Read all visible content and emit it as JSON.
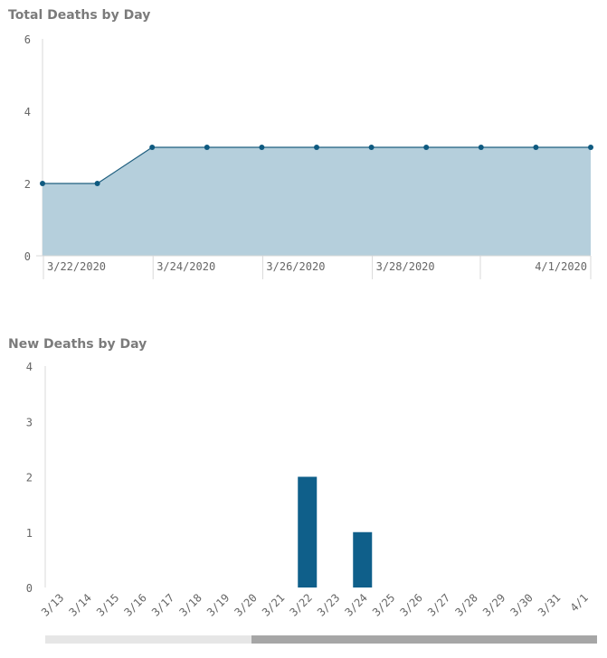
{
  "chart_data": [
    {
      "type": "area",
      "title": "Total Deaths by Day",
      "x": [
        "3/22/2020",
        "3/23/2020",
        "3/24/2020",
        "3/25/2020",
        "3/26/2020",
        "3/27/2020",
        "3/28/2020",
        "3/29/2020",
        "3/30/2020",
        "3/31/2020",
        "4/1/2020"
      ],
      "values": [
        2,
        2,
        3,
        3,
        3,
        3,
        3,
        3,
        3,
        3,
        3
      ],
      "x_tick_labels": [
        "3/22/2020",
        "3/24/2020",
        "3/26/2020",
        "3/28/2020",
        "4/1/2020"
      ],
      "y_ticks": [
        0,
        2,
        4,
        6
      ],
      "ylim": [
        0,
        6
      ],
      "colors": {
        "line": "#1f5f7f",
        "fill": "#b5cfdc",
        "point": "#0f5a80"
      }
    },
    {
      "type": "bar",
      "title": "New Deaths by Day",
      "categories": [
        "3/13",
        "3/14",
        "3/15",
        "3/16",
        "3/17",
        "3/18",
        "3/19",
        "3/20",
        "3/21",
        "3/22",
        "3/23",
        "3/24",
        "3/25",
        "3/26",
        "3/27",
        "3/28",
        "3/29",
        "3/30",
        "3/31",
        "4/1"
      ],
      "values": [
        0,
        0,
        0,
        0,
        0,
        0,
        0,
        0,
        0,
        2,
        0,
        1,
        0,
        0,
        0,
        0,
        0,
        0,
        0,
        0
      ],
      "y_ticks": [
        0,
        1,
        2,
        3,
        4
      ],
      "ylim": [
        0,
        4
      ],
      "colors": {
        "bar": "#0f5f8a"
      }
    }
  ]
}
